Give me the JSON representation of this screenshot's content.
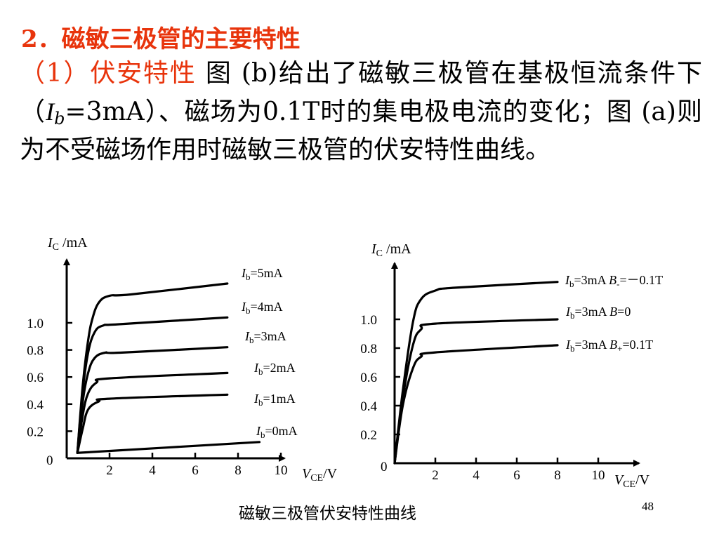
{
  "slide": {
    "heading": "2．磁敏三极管的主要特性",
    "para_red": "（1）伏安特性",
    "para_1": " 图 (b)给出了磁敏三极管在基极恒流条件下（",
    "para_ib_var": "I",
    "para_ib_sub": "b",
    "para_2": "=3mA）、磁场为0.1T时的集电极电流的变化；图 (a)则为不受磁场作用时磁敏三极管的伏安特性曲线。",
    "caption": "磁敏三极管伏安特性曲线",
    "page_number": "48"
  },
  "chart_data": [
    {
      "type": "line",
      "ylabel_var": "I",
      "ylabel_sub": "C",
      "ylabel_unit": " /mA",
      "xlabel_var": "V",
      "xlabel_sub": "CE",
      "xlabel_unit": "/V",
      "origin_label": "0",
      "x_ticks": [
        2,
        4,
        6,
        8,
        10
      ],
      "y_ticks": [
        0.2,
        0.4,
        0.6,
        0.8,
        1.0
      ],
      "y_tick_labels": [
        "0.2",
        "0.4",
        "0.6",
        "0.8",
        "1.0"
      ],
      "xlim": [
        0,
        11.3
      ],
      "ylim": [
        0,
        1.34
      ],
      "series": [
        {
          "name_var": "I",
          "name_sub": "b",
          "name_rest": "=5mA",
          "points": [
            [
              0.5,
              0.04
            ],
            [
              0.75,
              0.54
            ],
            [
              1,
              0.87
            ],
            [
              1.2,
              1.03
            ],
            [
              1.5,
              1.15
            ],
            [
              2,
              1.2
            ],
            [
              3,
              1.21
            ],
            [
              7.5,
              1.29
            ]
          ]
        },
        {
          "name_var": "I",
          "name_sub": "b",
          "name_rest": "=4mA",
          "points": [
            [
              0.5,
              0.04
            ],
            [
              0.75,
              0.5
            ],
            [
              1,
              0.78
            ],
            [
              1.3,
              0.93
            ],
            [
              1.7,
              0.98
            ],
            [
              2.5,
              0.99
            ],
            [
              7.5,
              1.04
            ]
          ]
        },
        {
          "name_var": "I",
          "name_sub": "b",
          "name_rest": "=3mA",
          "points": [
            [
              0.5,
              0.04
            ],
            [
              0.75,
              0.42
            ],
            [
              1,
              0.63
            ],
            [
              1.3,
              0.74
            ],
            [
              1.8,
              0.78
            ],
            [
              2.5,
              0.78
            ],
            [
              7.5,
              0.82
            ]
          ]
        },
        {
          "name_var": "I",
          "name_sub": "b",
          "name_rest": "=2mA",
          "points": [
            [
              0.5,
              0.04
            ],
            [
              0.75,
              0.32
            ],
            [
              1,
              0.48
            ],
            [
              1.4,
              0.56
            ],
            [
              2,
              0.59
            ],
            [
              7.5,
              0.63
            ]
          ]
        },
        {
          "name_var": "I",
          "name_sub": "b",
          "name_rest": "=1mA",
          "points": [
            [
              0.5,
              0.04
            ],
            [
              0.75,
              0.22
            ],
            [
              1,
              0.36
            ],
            [
              1.5,
              0.42
            ],
            [
              2,
              0.44
            ],
            [
              7.5,
              0.47
            ]
          ]
        },
        {
          "name_var": "I",
          "name_sub": "b",
          "name_rest": "=0mA",
          "points": [
            [
              0.5,
              0.04
            ],
            [
              9,
              0.12
            ]
          ]
        }
      ]
    },
    {
      "type": "line",
      "ylabel_var": "I",
      "ylabel_sub": "C",
      "ylabel_unit": " /mA",
      "xlabel_var": "V",
      "xlabel_sub": "CE",
      "xlabel_unit": "/V",
      "origin_label": "0",
      "x_ticks": [
        2,
        4,
        6,
        8,
        10
      ],
      "y_ticks": [
        0.2,
        0.4,
        0.6,
        0.8,
        1.0
      ],
      "y_tick_labels": [
        "0.2",
        "0.4",
        "0.6",
        "0.8",
        "1.0"
      ],
      "xlim": [
        0,
        11.6
      ],
      "ylim": [
        0,
        1.45
      ],
      "series": [
        {
          "name_var": "I",
          "name_sub": "b",
          "name_rest": "=3mA ",
          "name_var2": "B",
          "name_sub2": "-",
          "name_rest2": "=－0.1T",
          "points": [
            [
              0,
              0
            ],
            [
              0.4,
              0.5
            ],
            [
              0.9,
              0.98
            ],
            [
              1.3,
              1.14
            ],
            [
              2,
              1.2
            ],
            [
              3,
              1.22
            ],
            [
              8,
              1.26
            ]
          ]
        },
        {
          "name_var": "I",
          "name_sub": "b",
          "name_rest": "=3mA ",
          "name_var2": "B",
          "name_sub2": "",
          "name_rest2": "=0",
          "points": [
            [
              0,
              0
            ],
            [
              0.4,
              0.45
            ],
            [
              0.9,
              0.82
            ],
            [
              1.3,
              0.93
            ],
            [
              2,
              0.97
            ],
            [
              8,
              1.0
            ]
          ]
        },
        {
          "name_var": "I",
          "name_sub": "b",
          "name_rest": "=3mA ",
          "name_var2": "B",
          "name_sub2": "+",
          "name_rest2": "=0.1T",
          "points": [
            [
              0,
              0
            ],
            [
              0.4,
              0.4
            ],
            [
              0.9,
              0.66
            ],
            [
              1.3,
              0.74
            ],
            [
              2,
              0.77
            ],
            [
              8,
              0.82
            ]
          ]
        }
      ]
    }
  ]
}
